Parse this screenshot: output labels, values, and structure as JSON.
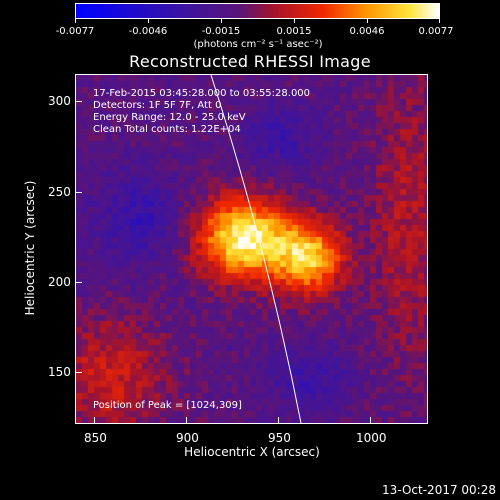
{
  "colorbar": {
    "tick_labels": [
      "-0.0077",
      "-0.0046",
      "-0.0015",
      "0.0015",
      "0.0046",
      "0.0077"
    ],
    "unit": "(photons cm⁻² s⁻¹ asec⁻²)",
    "range": [
      -0.0077,
      0.0077
    ],
    "colors": [
      "#0000ff",
      "#7a00a0",
      "#ff0000",
      "#ff9900",
      "#ffffff"
    ]
  },
  "title": "Reconstructed RHESSI Image",
  "info": {
    "time": "17-Feb-2015 03:45:28.000 to 03:55:28.000",
    "detectors": "Detectors: 1F 5F 7F, Att 0",
    "energy": "Energy Range: 12.0 - 25.0 keV",
    "clean": "Clean     Total counts: 1.22E+04",
    "peak": "Position of Peak = [1024,309]"
  },
  "axes": {
    "xlabel": "Heliocentric X (arcsec)",
    "ylabel": "Heliocentric Y (arcsec)",
    "xticks": [
      "850",
      "900",
      "950",
      "1000"
    ],
    "yticks": [
      "150",
      "200",
      "250",
      "300"
    ],
    "xrange": [
      840,
      1032
    ],
    "yrange": [
      120,
      314
    ]
  },
  "timestamp": "13-Oct-2017 00:28"
}
